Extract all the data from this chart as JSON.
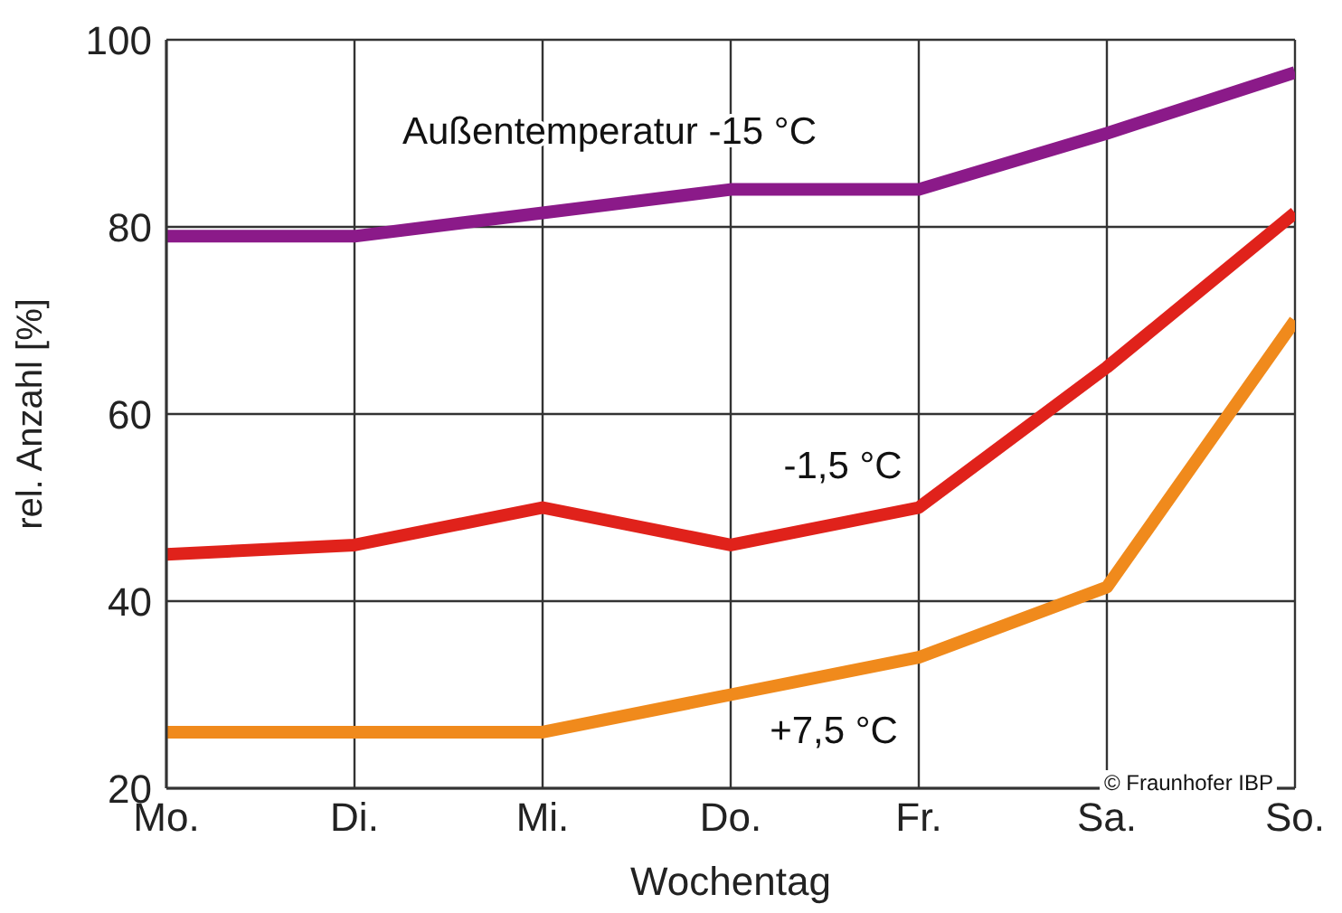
{
  "chart_data": {
    "type": "line",
    "xlabel": "Wochentag",
    "ylabel": "rel. Anzahl [%]",
    "categories": [
      "Mo.",
      "Di.",
      "Mi.",
      "Do.",
      "Fr.",
      "Sa.",
      "So."
    ],
    "series": [
      {
        "name": "Außentemperatur -15 °C",
        "color": "#8b1a89",
        "values": [
          79,
          79,
          81.5,
          84,
          84,
          90,
          96.5
        ]
      },
      {
        "name": "-1,5 °C",
        "color": "#e0221b",
        "values": [
          45,
          46,
          50,
          46,
          50,
          65,
          81.5
        ]
      },
      {
        "name": "+7,5 °C",
        "color": "#f08a1c",
        "values": [
          26,
          26,
          26,
          30,
          34,
          41.5,
          70
        ]
      }
    ],
    "ylim": [
      20,
      100
    ],
    "yticks": [
      20,
      40,
      60,
      80,
      100
    ],
    "grid": true,
    "legend": false,
    "marker": "none",
    "line_style": "solid",
    "annotations": [
      "© Fraunhofer IBP"
    ]
  }
}
